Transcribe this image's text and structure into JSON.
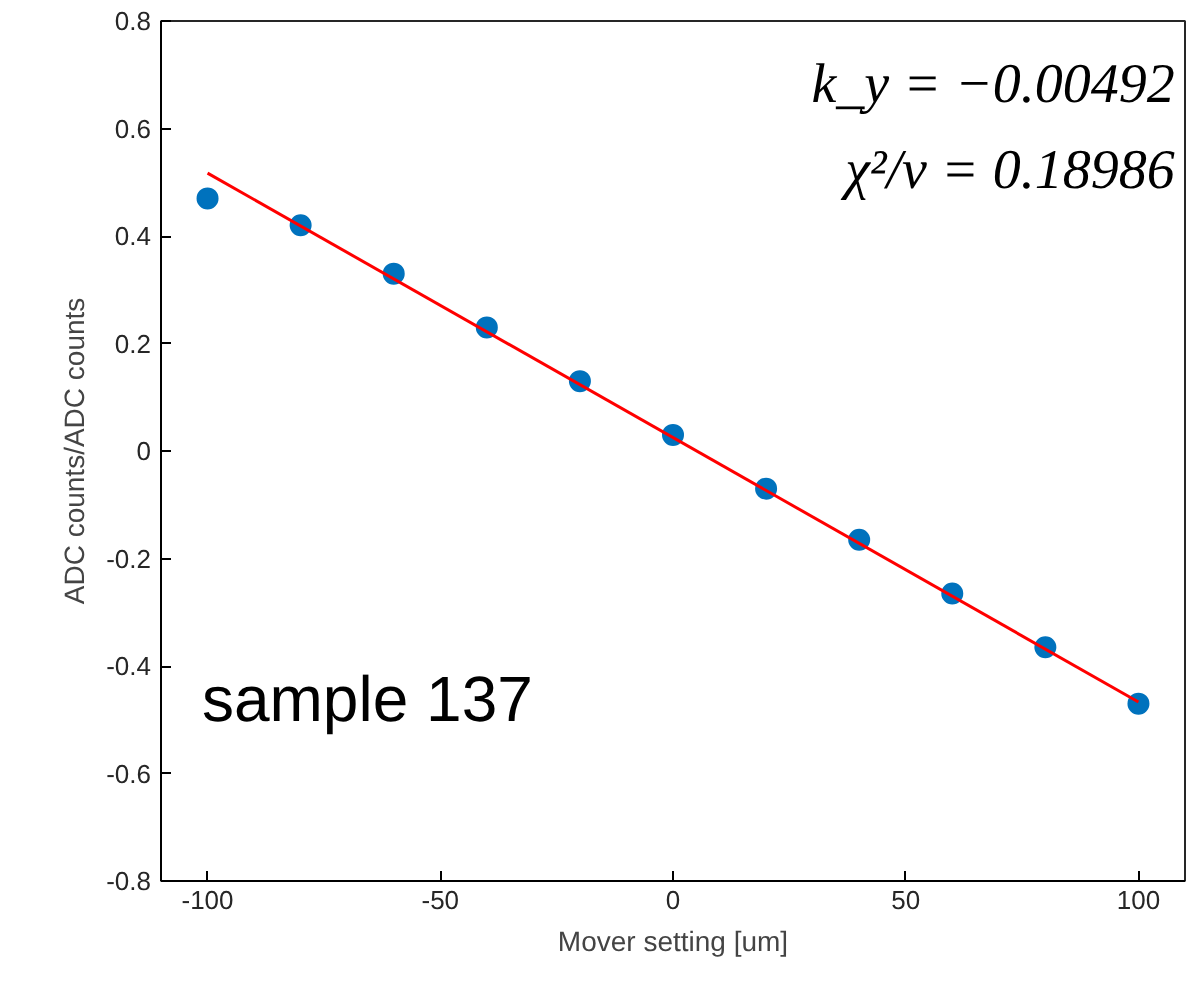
{
  "chart_data": {
    "type": "scatter",
    "xlabel": "Mover setting [um]",
    "ylabel": "ADC counts/ADC counts",
    "x": [
      -100,
      -80,
      -60,
      -40,
      -20,
      0,
      20,
      40,
      60,
      80,
      100
    ],
    "series": [
      {
        "color": "#0072bd",
        "values": [
          0.47,
          0.42,
          0.33,
          0.23,
          0.13,
          0.03,
          -0.07,
          -0.165,
          -0.265,
          -0.365,
          -0.47
        ]
      },
      {
        "type": "line",
        "marker": "none",
        "color": "#ff0000",
        "x": [
          -100,
          100
        ],
        "values": [
          0.517,
          -0.467
        ]
      }
    ],
    "xlim": [
      -110,
      110
    ],
    "ylim": [
      -0.8,
      0.8
    ],
    "xticks": [
      -100,
      -50,
      0,
      50,
      100
    ],
    "yticks": [
      -0.8,
      -0.6,
      -0.4,
      -0.2,
      0,
      0.2,
      0.4,
      0.6,
      0.8
    ],
    "grid": false,
    "marker": "circle",
    "annotations": [
      "k_y = −0.00492",
      "χ²/ν = 0.18986",
      "sample 137"
    ]
  }
}
